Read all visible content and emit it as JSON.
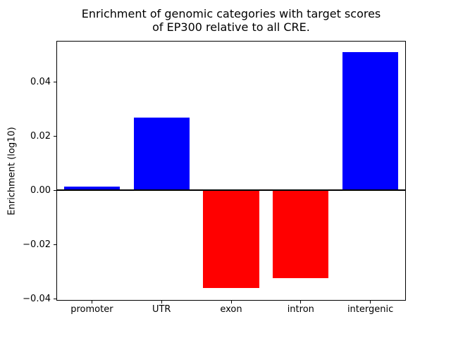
{
  "chart_data": {
    "type": "bar",
    "title": "Enrichment of genomic categories with target scores\nof EP300 relative to all CRE.",
    "title_lines": [
      "Enrichment of genomic categories with target scores",
      "of EP300 relative to all CRE."
    ],
    "xlabel": "",
    "ylabel": "Enrichment (log10)",
    "categories": [
      "promoter",
      "UTR",
      "exon",
      "intron",
      "intergenic"
    ],
    "values": [
      0.0015,
      0.027,
      -0.036,
      -0.0325,
      0.051
    ],
    "positive_color": "#0000ff",
    "negative_color": "#ff0000",
    "bar_colors": [
      "#0000ff",
      "#0000ff",
      "#ff0000",
      "#ff0000",
      "#0000ff"
    ],
    "ylim": [
      -0.0405,
      0.055
    ],
    "yticks": [
      -0.04,
      -0.02,
      0.0,
      0.02,
      0.04
    ],
    "ytick_labels": [
      "−0.04",
      "−0.02",
      "0.00",
      "0.02",
      "0.04"
    ],
    "zero_line": true,
    "grid": false,
    "legend_position": "none",
    "bar_width_fraction": 0.8
  }
}
